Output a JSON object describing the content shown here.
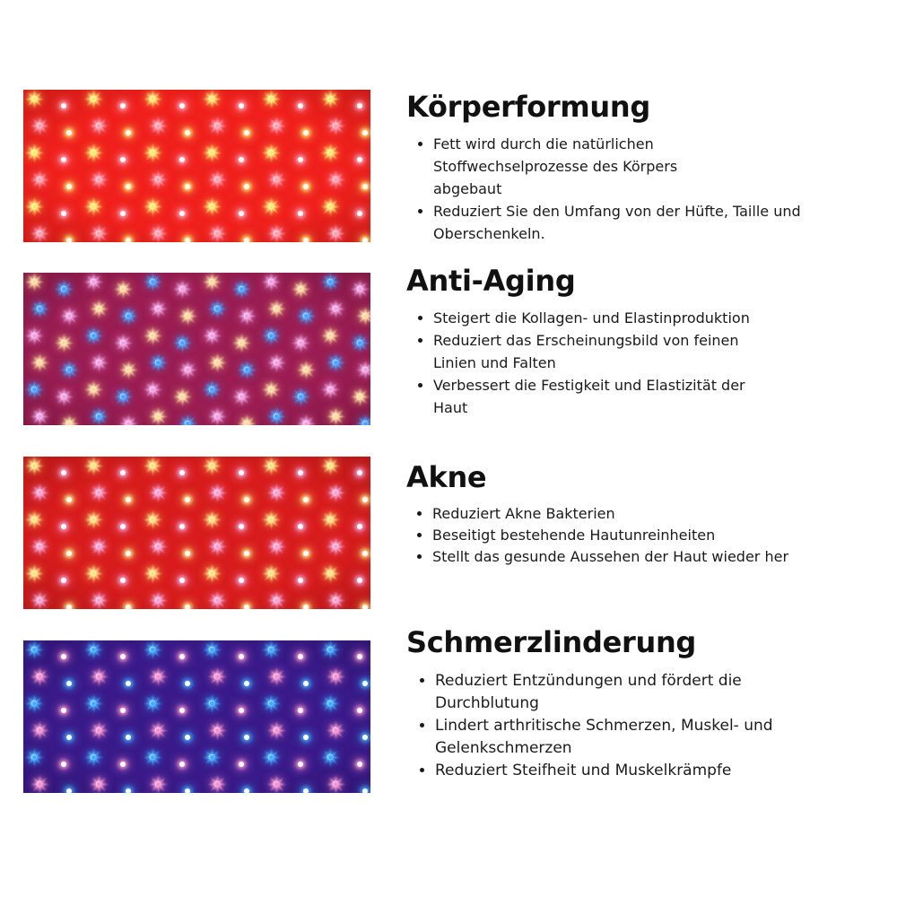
{
  "sections": [
    {
      "title": "Körperformung",
      "panel": {
        "base": "#f0201c",
        "leds": [
          "#ffe870",
          "#ff9db0"
        ]
      },
      "bullets": [
        "Fett wird durch die natürlichen Stoffwechselprozesse des Körpers abgebaut",
        "Reduziert Sie den Umfang von der Hüfte, Taille und Oberschenkeln."
      ]
    },
    {
      "title": "Anti-Aging",
      "panel": {
        "base": "#9a1d52",
        "leds": [
          "#ffd8a0",
          "#4aa0ff",
          "#f0a0e0"
        ]
      },
      "bullets": [
        "Steigert die Kollagen- und Elastinproduktion",
        "Reduziert das Erscheinungsbild von feinen Linien und Falten",
        "Verbessert die Festigkeit und Elastizität der Haut"
      ]
    },
    {
      "title": "Akne",
      "panel": {
        "base": "#d81c1c",
        "leds": [
          "#ffe080",
          "#f7a0d0"
        ]
      },
      "bullets": [
        "Reduziert Akne Bakterien",
        "Beseitigt bestehende Hautunreinheiten",
        "Stellt das gesunde Aussehen der Haut wieder her"
      ]
    },
    {
      "title": "Schmerzlinderung",
      "panel": {
        "base": "#3a1a8a",
        "leds": [
          "#40a8ff",
          "#f090d0"
        ]
      },
      "bullets": [
        "Reduziert Entzündungen und fördert die Durchblutung",
        "Lindert arthritische Schmerzen, Muskel- und Gelenkschmerzen",
        "Reduziert Steifheit und Muskelkrämpfe"
      ]
    }
  ]
}
